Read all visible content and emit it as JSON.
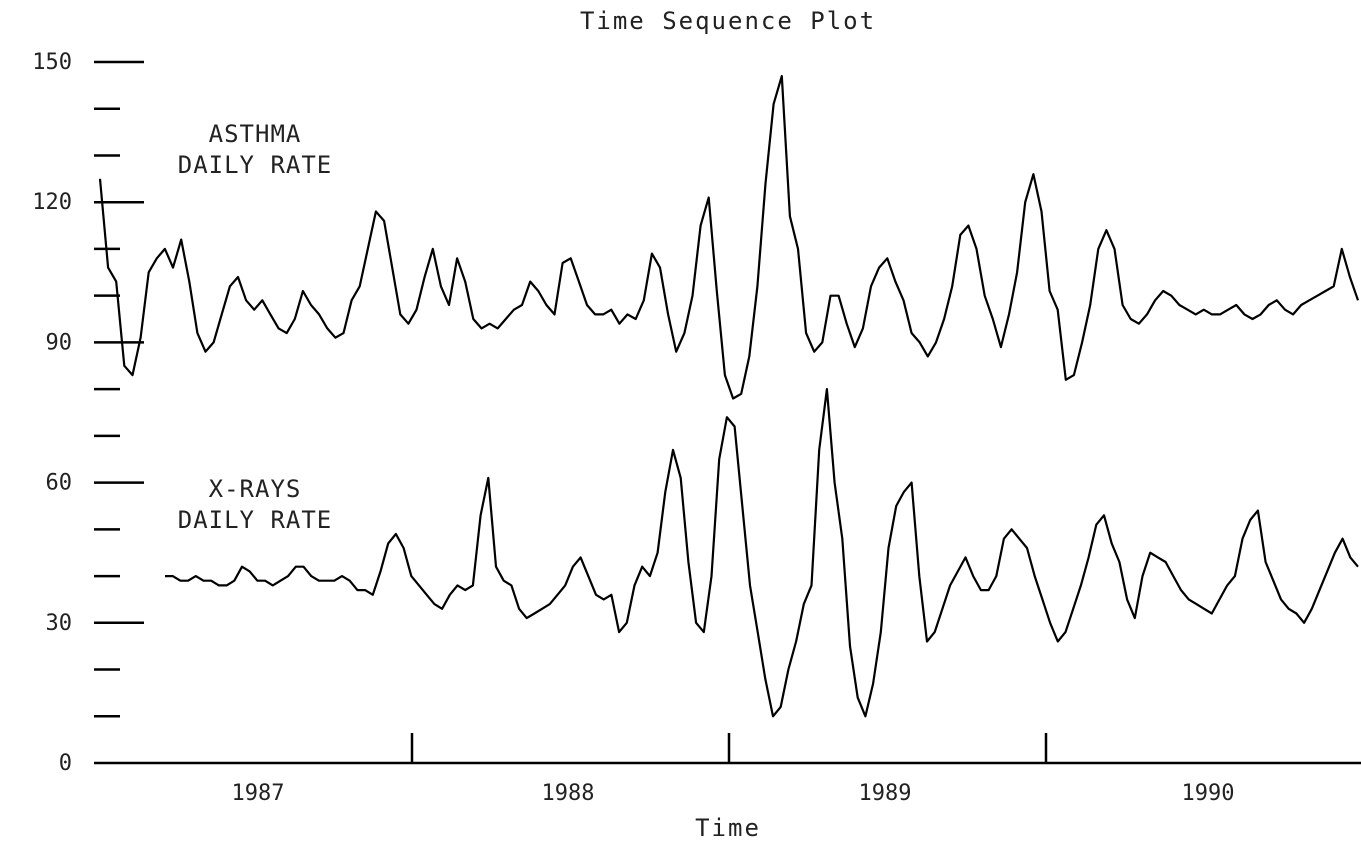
{
  "chart_data": {
    "type": "line",
    "title": "Time Sequence Plot",
    "xlabel": "Time",
    "ylabel": "",
    "ylim": [
      0,
      150
    ],
    "y_ticks": [
      0,
      30,
      60,
      90,
      120,
      150
    ],
    "y_tick_labels": [
      "0",
      "30",
      "60",
      "90",
      "120",
      "150"
    ],
    "x_tick_labels": [
      "1987",
      "1988",
      "1989",
      "1990"
    ],
    "series": [
      {
        "name": "ASTHMA DAILY RATE",
        "label_lines": [
          "ASTHMA",
          "DAILY RATE"
        ],
        "values": [
          125,
          106,
          103,
          85,
          83,
          91,
          105,
          108,
          110,
          106,
          112,
          103,
          92,
          88,
          90,
          96,
          102,
          104,
          99,
          97,
          99,
          96,
          93,
          92,
          95,
          101,
          98,
          96,
          93,
          91,
          92,
          99,
          102,
          110,
          118,
          116,
          106,
          96,
          94,
          97,
          104,
          110,
          102,
          98,
          108,
          103,
          95,
          93,
          94,
          93,
          95,
          97,
          98,
          103,
          101,
          98,
          96,
          107,
          108,
          103,
          98,
          96,
          96,
          97,
          94,
          96,
          95,
          99,
          109,
          106,
          96,
          88,
          92,
          100,
          115,
          121,
          101,
          83,
          78,
          79,
          87,
          102,
          124,
          141,
          147,
          117,
          110,
          92,
          88,
          90,
          100,
          100,
          94,
          89,
          93,
          102,
          106,
          108,
          103,
          99,
          92,
          90,
          87,
          90,
          95,
          102,
          113,
          115,
          110,
          100,
          95,
          89,
          96,
          105,
          120,
          126,
          118,
          101,
          97,
          82,
          83,
          90,
          98,
          110,
          114,
          110,
          98,
          95,
          94,
          96,
          99,
          101,
          100,
          98,
          97,
          96,
          97,
          96,
          96,
          97,
          98,
          96,
          95,
          96,
          98,
          99,
          97,
          96,
          98,
          99,
          100,
          101,
          102,
          110,
          104,
          99
        ],
        "color": "#000000"
      },
      {
        "name": "X-RAYS DAILY RATE",
        "label_lines": [
          "X-RAYS",
          "DAILY RATE"
        ],
        "values": [
          40,
          40,
          39,
          39,
          40,
          39,
          39,
          38,
          38,
          39,
          42,
          41,
          39,
          39,
          38,
          39,
          40,
          42,
          42,
          40,
          39,
          39,
          39,
          40,
          39,
          37,
          37,
          36,
          41,
          47,
          49,
          46,
          40,
          38,
          36,
          34,
          33,
          36,
          38,
          37,
          38,
          53,
          61,
          42,
          39,
          38,
          33,
          31,
          32,
          33,
          34,
          36,
          38,
          42,
          44,
          40,
          36,
          35,
          36,
          28,
          30,
          38,
          42,
          40,
          45,
          58,
          67,
          61,
          43,
          30,
          28,
          40,
          65,
          74,
          72,
          55,
          38,
          28,
          18,
          10,
          12,
          20,
          26,
          34,
          38,
          67,
          80,
          60,
          48,
          25,
          14,
          10,
          17,
          28,
          46,
          55,
          58,
          60,
          40,
          26,
          28,
          33,
          38,
          41,
          44,
          40,
          37,
          37,
          40,
          48,
          50,
          48,
          46,
          40,
          35,
          30,
          26,
          28,
          33,
          38,
          44,
          51,
          53,
          47,
          43,
          35,
          31,
          40,
          45,
          44,
          43,
          40,
          37,
          35,
          34,
          33,
          32,
          35,
          38,
          40,
          48,
          52,
          54,
          43,
          39,
          35,
          33,
          32,
          30,
          33,
          37,
          41,
          45,
          48,
          44,
          42
        ],
        "color": "#000000"
      }
    ],
    "grid": false,
    "legend": "none (series labels at left)"
  }
}
